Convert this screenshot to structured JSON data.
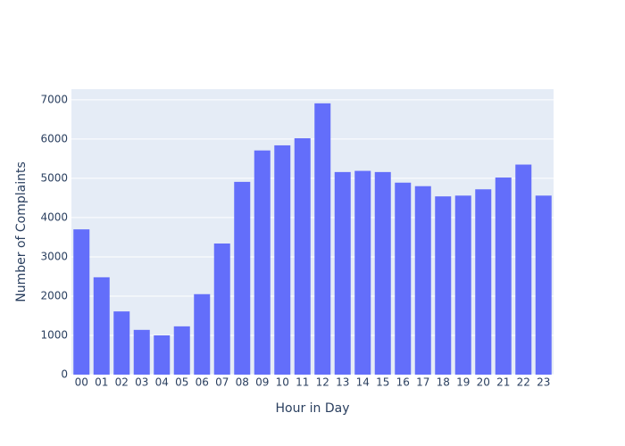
{
  "chart_data": {
    "type": "bar",
    "x_label": "Hour in Day",
    "y_label": "Number of Complaints",
    "categories": [
      "00",
      "01",
      "02",
      "03",
      "04",
      "05",
      "06",
      "07",
      "08",
      "09",
      "10",
      "11",
      "12",
      "13",
      "14",
      "15",
      "16",
      "17",
      "18",
      "19",
      "20",
      "21",
      "22",
      "23"
    ],
    "values": [
      3700,
      2480,
      1610,
      1140,
      1000,
      1230,
      2050,
      3340,
      4910,
      5710,
      5840,
      6020,
      6910,
      5160,
      5190,
      5160,
      4890,
      4800,
      4540,
      4560,
      4720,
      5020,
      5350,
      4560
    ],
    "color": "#636efa",
    "ylim": [
      0,
      7270
    ],
    "yticks": [
      0,
      1000,
      2000,
      3000,
      4000,
      5000,
      6000,
      7000
    ],
    "grid": true
  }
}
